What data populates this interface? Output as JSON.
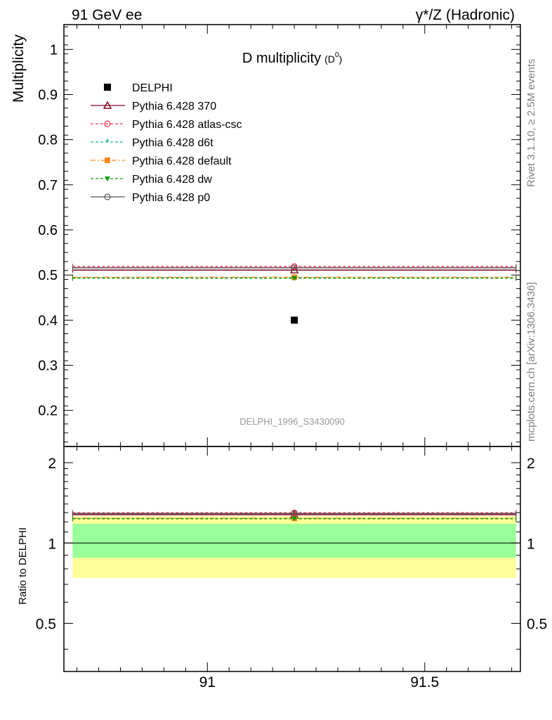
{
  "header": {
    "left": "91 GeV ee",
    "right": "γ*/Z (Hadronic)"
  },
  "side": {
    "rivet": "Rivet 3.1.10, ≥ 2.5M events",
    "mcplots": "mcplots.cern.ch [arXiv:1306.3436]"
  },
  "chart_data": [
    {
      "type": "scatter",
      "title": "D multiplicity",
      "title_sub": "(D",
      "title_sup": "0",
      "title_close": ")",
      "ylabel": "Multiplicity",
      "watermark": "DELPHI_1996_S3430090",
      "xlim": [
        90.67,
        91.72
      ],
      "ylim": [
        0.12,
        1.055
      ],
      "x_ticks": [
        91,
        91.5
      ],
      "x_tick_labels": [
        "91",
        "91.5"
      ],
      "y_ticks": [
        0.2,
        0.3,
        0.4,
        0.5,
        0.6,
        0.7,
        0.8,
        0.9,
        1
      ],
      "y_tick_labels": [
        "0.2",
        "0.3",
        "0.4",
        "0.5",
        "0.6",
        "0.7",
        "0.8",
        "0.9",
        "1"
      ],
      "grid": false,
      "legend": "top-left",
      "bin": [
        90.69,
        91.71
      ],
      "point_x": 91.2,
      "series": [
        {
          "name": "DELPHI",
          "value": 0.4,
          "color": "#000000",
          "marker": "square",
          "kind": "data"
        },
        {
          "name": "Pythia 6.428 370",
          "value": 0.511,
          "color": "#800020",
          "marker": "triangle-open",
          "dash": "solid"
        },
        {
          "name": "Pythia 6.428 atlas-csc",
          "value": 0.519,
          "color": "#ff3355",
          "marker": "circle-open",
          "dash": "dash"
        },
        {
          "name": "Pythia 6.428 d6t",
          "value": 0.494,
          "color": "#1ab394",
          "marker": "star",
          "dash": "dash"
        },
        {
          "name": "Pythia 6.428 default",
          "value": 0.495,
          "color": "#ff8c1a",
          "marker": "square",
          "dash": "dashdot"
        },
        {
          "name": "Pythia 6.428 dw",
          "value": 0.493,
          "color": "#139c13",
          "marker": "triangle-down",
          "dash": "dash"
        },
        {
          "name": "Pythia 6.428 p0",
          "value": 0.516,
          "color": "#555555",
          "marker": "circle-open",
          "dash": "solid"
        }
      ]
    },
    {
      "type": "scatter",
      "ylabel": "Ratio to DELPHI",
      "xlim": [
        90.67,
        91.72
      ],
      "ylim": [
        0.33,
        2.3
      ],
      "x_ticks": [
        91,
        91.5
      ],
      "x_tick_labels": [
        "91",
        "91.5"
      ],
      "y_ticks": [
        0.5,
        1,
        2
      ],
      "y_tick_labels": [
        "0.5",
        "1",
        "2"
      ],
      "grid": false,
      "bands": {
        "yellow": [
          0.74,
          1.26
        ],
        "green": [
          0.88,
          1.18
        ],
        "yellow_color": "#ffff99",
        "green_color": "#99ff99"
      },
      "reference": 1,
      "ratios": [
        1.277,
        1.298,
        1.235,
        1.238,
        1.233,
        1.29
      ]
    }
  ]
}
